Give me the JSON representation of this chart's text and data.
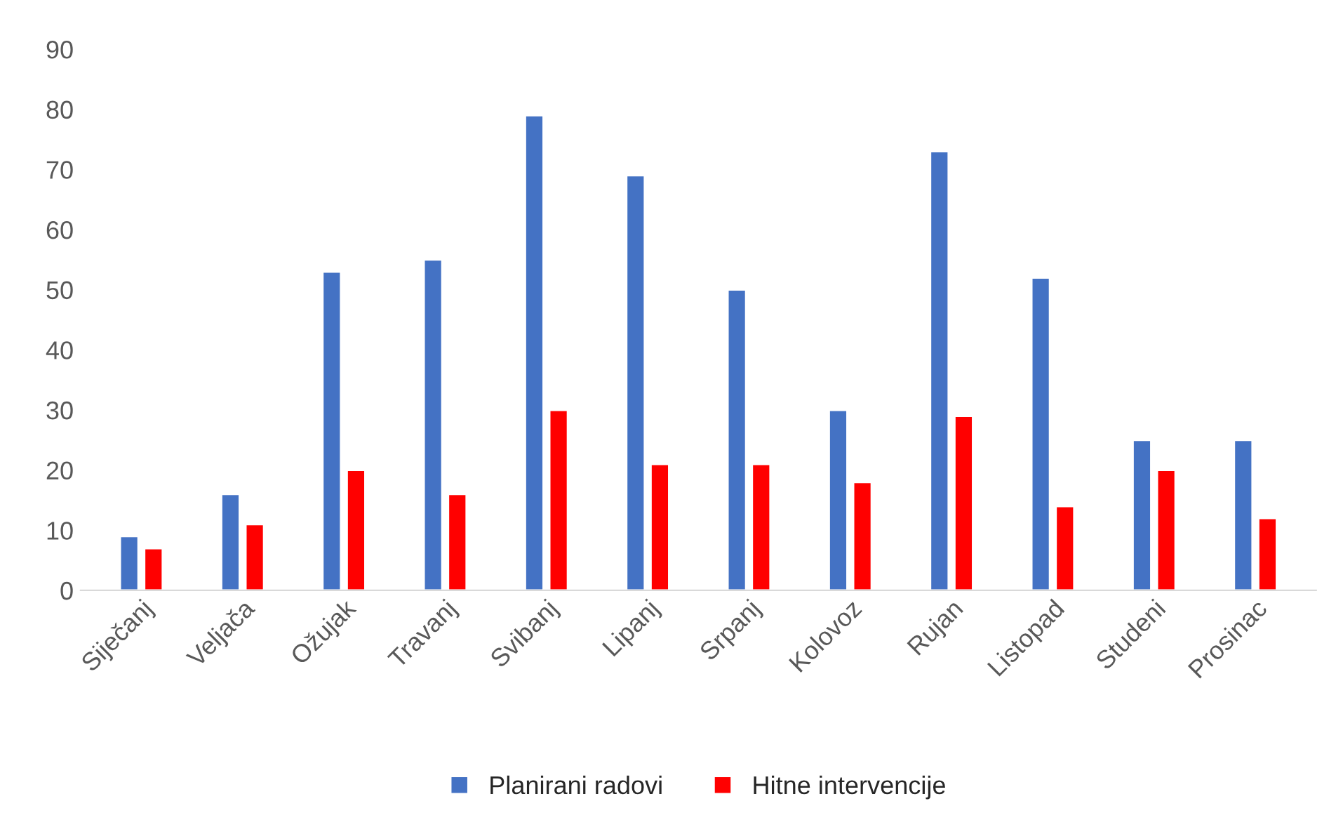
{
  "chart_data": {
    "type": "bar",
    "categories": [
      "Siječanj",
      "Veljača",
      "Ožujak",
      "Travanj",
      "Svibanj",
      "Lipanj",
      "Srpanj",
      "Kolovoz",
      "Rujan",
      "Listopad",
      "Studeni",
      "Prosinac"
    ],
    "series": [
      {
        "name": "Planirani radovi",
        "color": "#4472c4",
        "values": [
          9,
          16,
          53,
          55,
          79,
          69,
          50,
          30,
          73,
          52,
          25,
          25
        ]
      },
      {
        "name": "Hitne intervencije",
        "color": "#ff0000",
        "values": [
          7,
          11,
          20,
          16,
          30,
          21,
          21,
          18,
          29,
          14,
          20,
          12
        ]
      }
    ],
    "ylim": [
      0,
      90
    ],
    "yticks": [
      0,
      10,
      20,
      30,
      40,
      50,
      60,
      70,
      80,
      90
    ],
    "grid": false,
    "legend": "bottom"
  }
}
